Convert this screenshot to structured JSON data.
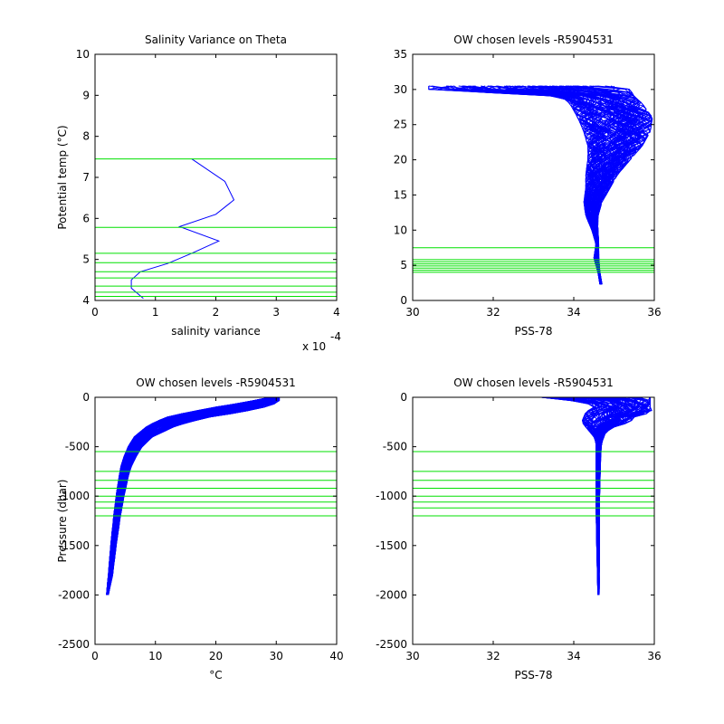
{
  "colors": {
    "data": "#0000ff",
    "levels": "#00e000",
    "axes": "#000000",
    "background": "#ffffff"
  },
  "chart_data": [
    {
      "id": "p1",
      "type": "line",
      "title": "Salinity Variance on Theta",
      "xlabel": "salinity variance",
      "ylabel": "Potential temp (°C)",
      "x_multiplier_label": "x 10",
      "x_multiplier_exp": "-4",
      "xlim": [
        0,
        4
      ],
      "ylim": [
        4,
        10
      ],
      "xticks": [
        0,
        1,
        2,
        3,
        4
      ],
      "yticks": [
        4,
        5,
        6,
        7,
        8,
        9,
        10
      ],
      "series": [
        {
          "x": [
            0.8,
            0.6,
            0.6,
            0.75,
            1.2,
            1.6,
            2.05,
            1.4,
            2.0,
            2.3,
            2.15,
            1.6
          ],
          "y": [
            4.05,
            4.3,
            4.5,
            4.7,
            4.9,
            5.15,
            5.45,
            5.8,
            6.1,
            6.45,
            6.9,
            7.45
          ]
        }
      ],
      "levels": [
        4.1,
        4.2,
        4.35,
        4.55,
        4.7,
        4.92,
        5.15,
        5.78,
        7.45
      ]
    },
    {
      "id": "p2",
      "type": "line",
      "title": "OW chosen levels -R5904531",
      "xlabel": "PSS-78",
      "ylabel": "",
      "xlim": [
        30,
        36
      ],
      "ylim": [
        0,
        35
      ],
      "xticks": [
        30,
        32,
        34,
        36
      ],
      "yticks": [
        0,
        5,
        10,
        15,
        20,
        25,
        30,
        35
      ],
      "envelope": {
        "y": [
          30.5,
          30,
          29,
          28,
          26,
          24,
          22,
          20,
          18,
          16,
          14,
          12,
          10,
          8,
          6,
          4,
          2.3
        ],
        "x_min": [
          30.4,
          30.4,
          33.7,
          33.9,
          34.1,
          34.25,
          34.35,
          34.35,
          34.3,
          34.3,
          34.25,
          34.3,
          34.45,
          34.55,
          34.5,
          34.6,
          34.65
        ],
        "x_max": [
          35.0,
          35.4,
          35.5,
          35.7,
          35.95,
          35.9,
          35.7,
          35.4,
          35.1,
          34.9,
          34.7,
          34.6,
          34.6,
          34.62,
          34.62,
          34.65,
          34.7
        ]
      },
      "levels": [
        4.0,
        4.3,
        4.6,
        4.9,
        5.2,
        5.5,
        5.8,
        7.5
      ]
    },
    {
      "id": "p3",
      "type": "line",
      "title": "OW chosen levels -R5904531",
      "xlabel": "°C",
      "ylabel": "Pressure (dbar)",
      "xlim": [
        0,
        40
      ],
      "ylim": [
        -2500,
        0
      ],
      "xticks": [
        0,
        10,
        20,
        30,
        40
      ],
      "yticks": [
        0,
        -500,
        -1000,
        -1500,
        -2000,
        -2500
      ],
      "envelope": {
        "y": [
          0,
          -50,
          -100,
          -150,
          -200,
          -250,
          -300,
          -400,
          -500,
          -600,
          -700,
          -800,
          -1000,
          -1200,
          -1500,
          -1800,
          -2000
        ],
        "x_min": [
          29.0,
          25.0,
          20.0,
          15.5,
          12.0,
          10.0,
          8.5,
          6.5,
          5.5,
          4.8,
          4.3,
          4.0,
          3.5,
          3.1,
          2.6,
          2.2,
          1.9
        ],
        "x_max": [
          30.5,
          30.5,
          28.0,
          24.0,
          19.0,
          15.5,
          13.0,
          9.5,
          7.8,
          6.8,
          6.0,
          5.5,
          4.8,
          4.2,
          3.5,
          2.9,
          2.2
        ]
      },
      "levels": [
        -550,
        -750,
        -840,
        -920,
        -1000,
        -1060,
        -1120,
        -1200
      ]
    },
    {
      "id": "p4",
      "type": "line",
      "title": "OW chosen levels -R5904531",
      "xlabel": "PSS-78",
      "ylabel": "",
      "xlim": [
        30,
        36
      ],
      "ylim": [
        -2500,
        0
      ],
      "xticks": [
        30,
        32,
        34,
        36
      ],
      "yticks": [
        0,
        -500,
        -1000,
        -1500,
        -2000,
        -2500
      ],
      "envelope": {
        "y": [
          0,
          -50,
          -100,
          -150,
          -200,
          -250,
          -300,
          -350,
          -400,
          -450,
          -500,
          -700,
          -1000,
          -1500,
          -2000
        ],
        "x_min": [
          33.2,
          34.3,
          34.5,
          34.3,
          34.25,
          34.2,
          34.3,
          34.4,
          34.5,
          34.55,
          34.55,
          34.55,
          34.55,
          34.57,
          34.6
        ],
        "x_max": [
          35.9,
          35.9,
          35.9,
          35.95,
          35.5,
          35.4,
          35.0,
          34.8,
          34.75,
          34.7,
          34.68,
          34.66,
          34.64,
          34.64,
          34.63
        ]
      },
      "levels": [
        -550,
        -750,
        -840,
        -920,
        -1000,
        -1060,
        -1120,
        -1200
      ]
    }
  ]
}
